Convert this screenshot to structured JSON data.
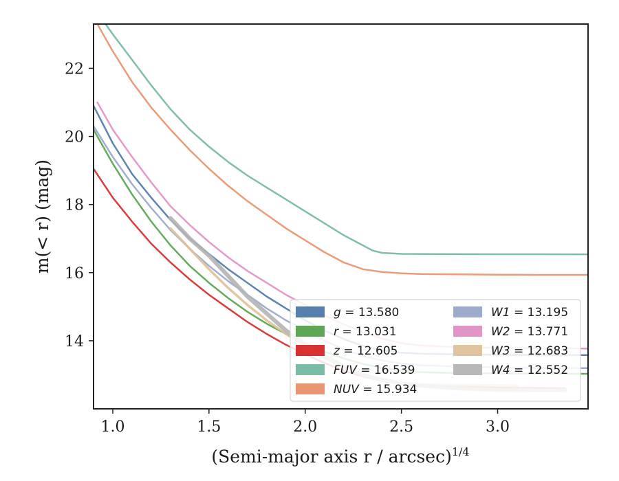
{
  "chart_data": {
    "type": "line",
    "xlabel": "(Semi-major axis r / arcsec)",
    "xlabel_superscript": "1/4",
    "ylabel": "m(< r) (mag)",
    "xlim": [
      0.9,
      3.47
    ],
    "ylim": [
      23.3,
      12.0
    ],
    "y_inverted": true,
    "grid": false,
    "legend_placement": "lower-right",
    "xticks": [
      "1.0",
      "1.5",
      "2.0",
      "2.5",
      "3.0"
    ],
    "xtick_values": [
      1.0,
      1.5,
      2.0,
      2.5,
      3.0
    ],
    "yticks": [
      "14",
      "16",
      "18",
      "20",
      "22"
    ],
    "ytick_values": [
      14,
      16,
      18,
      20,
      22
    ],
    "series": [
      {
        "key": "g",
        "label_var": "g",
        "label_val": "= 13.580",
        "color": "#4c78a8",
        "width": 2.5,
        "x": [
          0.9,
          1.0,
          1.1,
          1.2,
          1.3,
          1.4,
          1.5,
          1.6,
          1.7,
          1.8,
          1.9,
          2.0,
          2.1,
          2.2,
          2.3,
          2.4,
          2.5,
          2.6,
          2.8,
          3.0,
          3.2,
          3.47
        ],
        "y": [
          20.9,
          19.8,
          18.9,
          18.2,
          17.55,
          17.0,
          16.55,
          16.1,
          15.7,
          15.3,
          14.95,
          14.6,
          14.3,
          14.05,
          13.85,
          13.72,
          13.65,
          13.62,
          13.6,
          13.59,
          13.58,
          13.58
        ]
      },
      {
        "key": "r",
        "label_var": "r",
        "label_val": "= 13.031",
        "color": "#54a24b",
        "width": 2.5,
        "x": [
          0.9,
          1.0,
          1.1,
          1.2,
          1.3,
          1.4,
          1.5,
          1.6,
          1.7,
          1.8,
          1.9,
          2.0,
          2.1,
          2.2,
          2.3,
          2.4,
          2.5,
          2.6,
          2.8,
          3.0,
          3.2,
          3.47
        ],
        "y": [
          20.2,
          19.2,
          18.3,
          17.5,
          16.8,
          16.2,
          15.7,
          15.25,
          14.85,
          14.5,
          14.2,
          13.92,
          13.68,
          13.48,
          13.32,
          13.2,
          13.12,
          13.08,
          13.05,
          13.04,
          13.035,
          13.03
        ]
      },
      {
        "key": "z",
        "label_var": "z",
        "label_val": "= 12.605",
        "color": "#d62728",
        "width": 2.5,
        "x": [
          0.9,
          1.0,
          1.1,
          1.2,
          1.3,
          1.4,
          1.5,
          1.6,
          1.7,
          1.8,
          1.9,
          2.0,
          2.1,
          2.2,
          2.3,
          2.4,
          2.5,
          2.6,
          2.8,
          3.0,
          3.2,
          3.35
        ],
        "y": [
          19.05,
          18.2,
          17.5,
          16.85,
          16.3,
          15.8,
          15.35,
          14.95,
          14.55,
          14.2,
          13.88,
          13.6,
          13.35,
          13.12,
          12.95,
          12.82,
          12.74,
          12.69,
          12.65,
          12.62,
          12.61,
          12.605
        ]
      },
      {
        "key": "fuv",
        "label_var": "FUV",
        "label_val": "= 16.539",
        "color": "#72b7a1",
        "width": 2.5,
        "x": [
          0.9,
          1.0,
          1.1,
          1.2,
          1.3,
          1.4,
          1.5,
          1.6,
          1.7,
          1.8,
          1.9,
          2.0,
          2.1,
          2.2,
          2.3,
          2.35,
          2.4,
          2.5,
          2.7,
          3.0,
          3.2,
          3.47
        ],
        "y": [
          23.8,
          23.0,
          22.25,
          21.5,
          20.8,
          20.2,
          19.7,
          19.25,
          18.85,
          18.5,
          18.15,
          17.8,
          17.45,
          17.1,
          16.8,
          16.65,
          16.58,
          16.55,
          16.545,
          16.54,
          16.54,
          16.539
        ]
      },
      {
        "key": "nuv",
        "label_var": "NUV",
        "label_val": "= 15.934",
        "color": "#e8906a",
        "width": 2.5,
        "x": [
          0.9,
          1.0,
          1.1,
          1.2,
          1.3,
          1.4,
          1.5,
          1.6,
          1.7,
          1.8,
          1.9,
          2.0,
          2.1,
          2.2,
          2.3,
          2.4,
          2.5,
          2.6,
          2.8,
          3.0,
          3.2,
          3.47
        ],
        "y": [
          23.5,
          22.5,
          21.6,
          20.85,
          20.2,
          19.6,
          19.05,
          18.55,
          18.1,
          17.7,
          17.3,
          16.95,
          16.6,
          16.3,
          16.1,
          16.02,
          15.98,
          15.96,
          15.95,
          15.94,
          15.935,
          15.934
        ]
      },
      {
        "key": "w1",
        "label_var": "W1",
        "label_val": "= 13.195",
        "color": "#97a6c9",
        "width": 2.5,
        "x": [
          0.9,
          1.0,
          1.1,
          1.2,
          1.3,
          1.4,
          1.5,
          1.6,
          1.7,
          1.8,
          1.9,
          2.0,
          2.1,
          2.2,
          2.3,
          2.4,
          2.5,
          2.6,
          2.8,
          3.0,
          3.2,
          3.47
        ],
        "y": [
          20.3,
          19.4,
          18.6,
          17.9,
          17.25,
          16.7,
          16.2,
          15.75,
          15.35,
          14.95,
          14.6,
          14.3,
          14.0,
          13.75,
          13.55,
          13.42,
          13.33,
          13.28,
          13.24,
          13.22,
          13.2,
          13.195
        ]
      },
      {
        "key": "w2",
        "label_var": "W2",
        "label_val": "= 13.771",
        "color": "#df8fc3",
        "width": 2.5,
        "x": [
          0.92,
          1.0,
          1.1,
          1.2,
          1.3,
          1.4,
          1.5,
          1.6,
          1.7,
          1.8,
          1.9,
          2.0,
          2.1,
          2.2,
          2.3,
          2.4,
          2.5,
          2.6,
          2.8,
          3.0,
          3.2,
          3.47
        ],
        "y": [
          21.0,
          20.2,
          19.4,
          18.65,
          17.95,
          17.4,
          16.9,
          16.45,
          16.05,
          15.7,
          15.35,
          15.05,
          14.75,
          14.48,
          14.25,
          14.06,
          13.93,
          13.86,
          13.81,
          13.79,
          13.78,
          13.771
        ]
      },
      {
        "key": "w3",
        "label_var": "W3",
        "label_val": "= 12.683",
        "color": "#dfc199",
        "width": 3.5,
        "x": [
          1.3,
          1.4,
          1.5,
          1.6,
          1.7,
          1.8,
          1.9,
          2.0,
          2.1,
          2.2,
          2.3,
          2.4,
          2.5,
          2.6,
          2.8,
          3.0,
          3.1
        ],
        "y": [
          17.3,
          16.7,
          16.1,
          15.55,
          15.05,
          14.6,
          14.2,
          13.85,
          13.5,
          13.22,
          13.0,
          12.85,
          12.76,
          12.72,
          12.7,
          12.69,
          12.683
        ]
      },
      {
        "key": "w4",
        "label_var": "W4",
        "label_val": "= 12.552",
        "color": "#b4b4b4",
        "width": 6,
        "x": [
          1.3,
          1.4,
          1.5,
          1.6,
          1.7,
          1.8,
          1.9,
          2.0,
          2.1,
          2.2,
          2.3,
          2.4,
          2.5,
          2.6,
          2.8,
          3.0,
          3.2,
          3.35
        ],
        "y": [
          17.6,
          17.0,
          16.5,
          15.9,
          15.3,
          14.8,
          14.3,
          13.9,
          13.55,
          13.25,
          13.0,
          12.85,
          12.75,
          12.68,
          12.6,
          12.56,
          12.55,
          12.552
        ]
      }
    ]
  }
}
